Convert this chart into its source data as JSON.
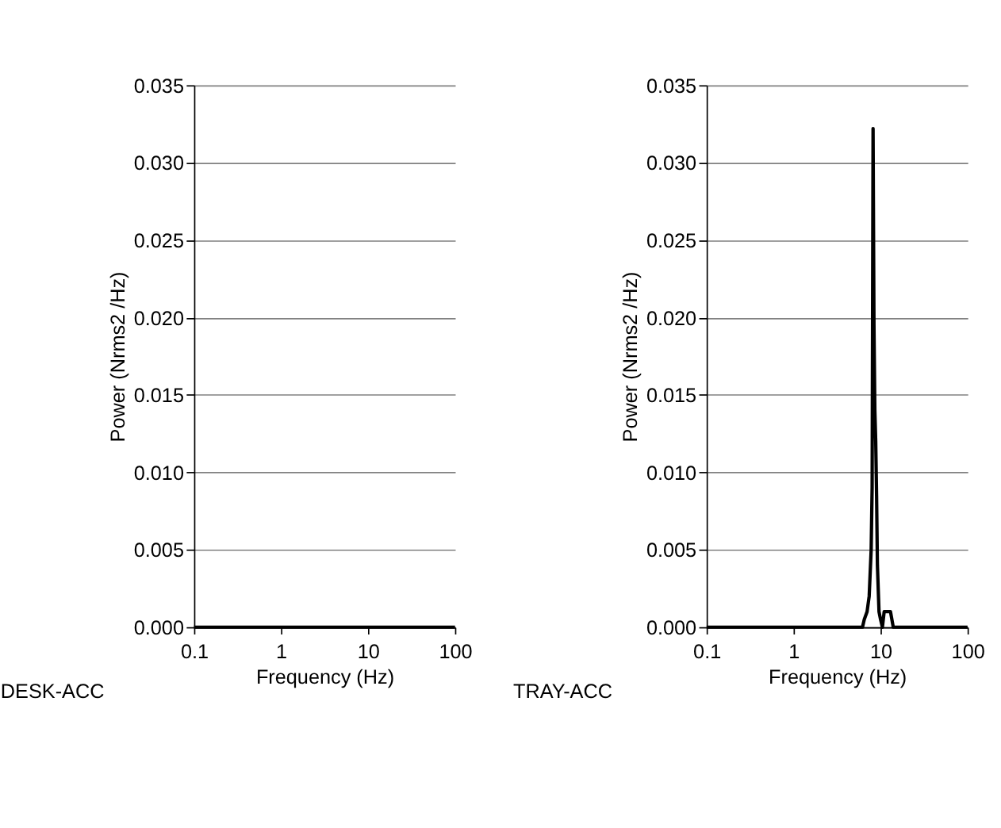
{
  "chart_data": [
    {
      "type": "line",
      "xlabel": "Frequency (Hz)",
      "ylabel": "Power (Nrms2 /Hz)",
      "annotations": [
        "DESK-ACC"
      ],
      "log": "x",
      "grid": "y",
      "marker": "none",
      "line_style": "solid",
      "x": [
        0.1,
        100
      ],
      "series": [
        {
          "color": "#000000",
          "values": [
            0,
            0
          ]
        }
      ],
      "xlim": [
        0.1,
        100
      ],
      "xticks": [
        0.1,
        1,
        10,
        100
      ],
      "ylim": [
        0,
        0.035
      ],
      "yticks": [
        {
          "value": 0,
          "label": "0.000"
        },
        {
          "value": 0.005,
          "label": "0.005"
        },
        {
          "value": 0.01,
          "label": "0.010"
        },
        {
          "value": 0.015,
          "label": "0.015"
        },
        {
          "value": 0.02,
          "label": "0.020"
        },
        {
          "value": 0.025,
          "label": "0.025"
        },
        {
          "value": 0.03,
          "label": "0.030"
        },
        {
          "value": 0.035,
          "label": "0.035"
        }
      ]
    },
    {
      "type": "line",
      "xlabel": "Frequency (Hz)",
      "ylabel": "Power (Nrms2 /Hz)",
      "annotations": [
        "TRAY-ACC"
      ],
      "log": "x",
      "grid": "y",
      "marker": "none",
      "line_style": "solid",
      "x": [
        0.1,
        6.2,
        6.5,
        7.0,
        7.4,
        7.8,
        8.0,
        8.2,
        8.4,
        8.6,
        8.8,
        9.0,
        9.2,
        9.6,
        10,
        10.5,
        11,
        12,
        13,
        14,
        100
      ],
      "series": [
        {
          "color": "#000000",
          "values": [
            0,
            0,
            0.0005,
            0.001,
            0.002,
            0.005,
            0.009,
            0.0322,
            0.0195,
            0.014,
            0.012,
            0.0085,
            0.004,
            0.001,
            0.0005,
            0,
            0.001,
            0.001,
            0.001,
            0,
            0
          ]
        }
      ],
      "xlim": [
        0.1,
        100
      ],
      "xticks": [
        0.1,
        1,
        10,
        100
      ],
      "ylim": [
        0,
        0.035
      ],
      "yticks": [
        {
          "value": 0,
          "label": "0.000"
        },
        {
          "value": 0.005,
          "label": "0.005"
        },
        {
          "value": 0.01,
          "label": "0.010"
        },
        {
          "value": 0.015,
          "label": "0.015"
        },
        {
          "value": 0.02,
          "label": "0.020"
        },
        {
          "value": 0.025,
          "label": "0.025"
        },
        {
          "value": 0.03,
          "label": "0.030"
        },
        {
          "value": 0.035,
          "label": "0.035"
        }
      ]
    }
  ]
}
